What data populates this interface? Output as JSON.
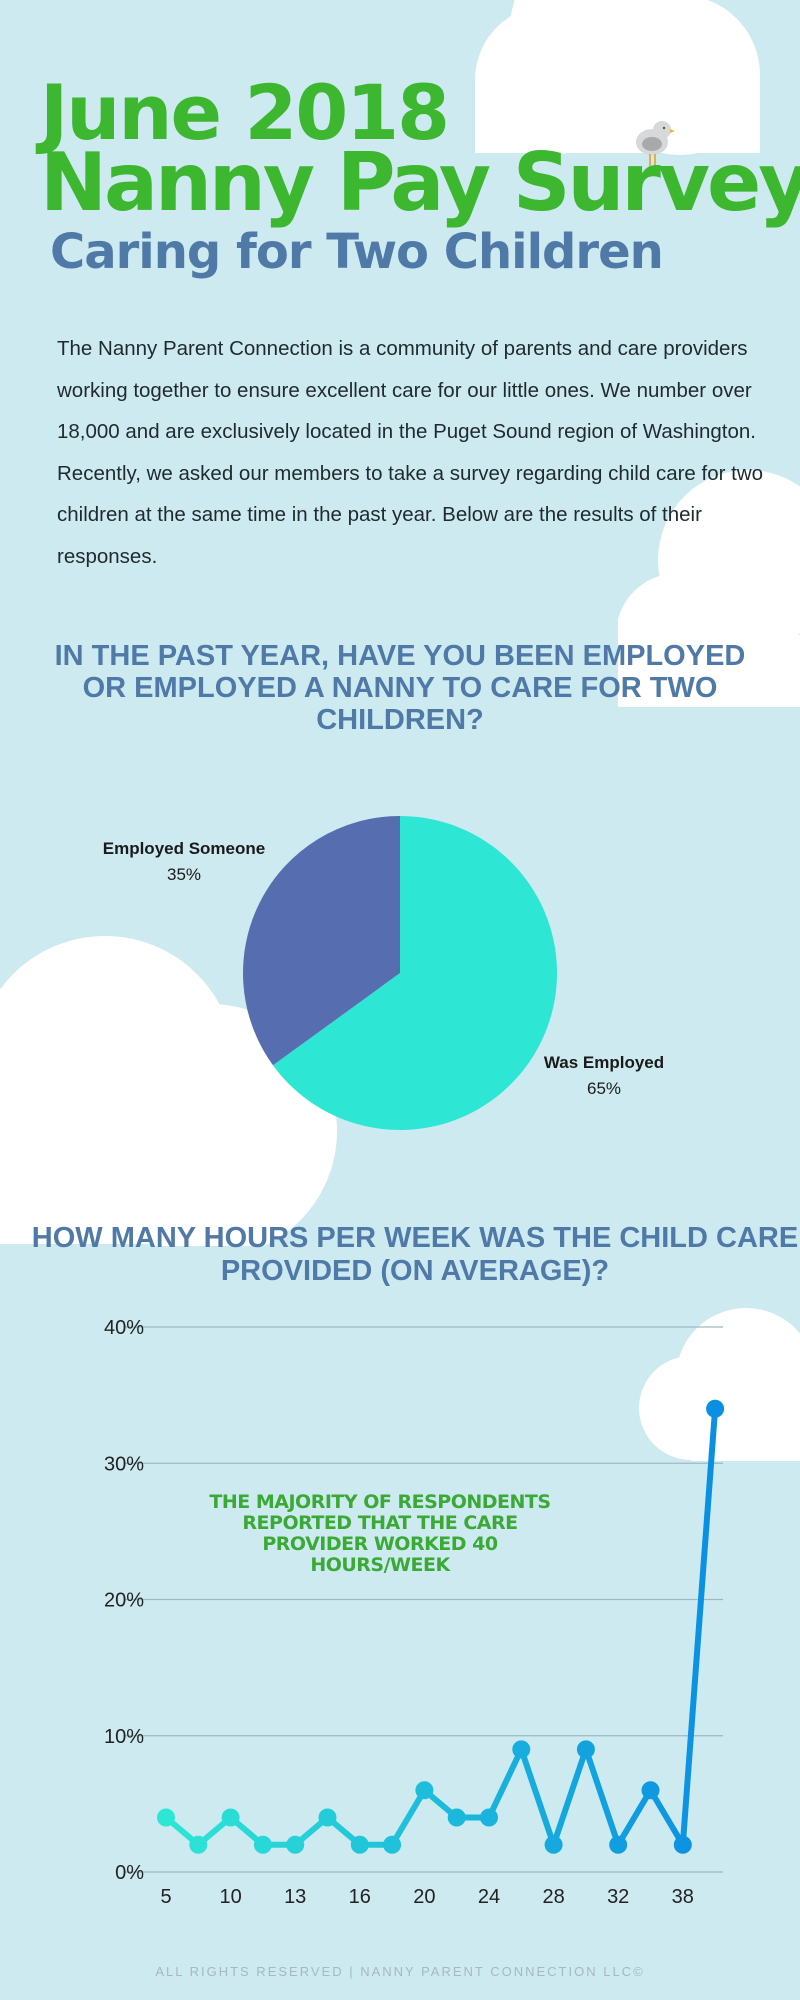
{
  "header": {
    "title_line1": "June 2018",
    "title_line2": "Nanny Pay Survey",
    "subtitle": "Caring for Two Children"
  },
  "intro": "The Nanny Parent Connection is a community of parents and care providers working together to ensure excellent care for our little ones. We number over 18,000 and are exclusively located in the Puget Sound region of Washington. Recently, we asked our members to take a survey regarding child care for two children at the same time in the past year. Below are the results of their responses.",
  "colors": {
    "background": "#cdeaf0",
    "title_green": "#3cb72f",
    "heading_blue": "#4f79a7",
    "annotation_green": "#3aa935"
  },
  "chart_data": [
    {
      "type": "pie",
      "title": "IN THE PAST YEAR, HAVE YOU BEEN EMPLOYED OR EMPLOYED A NANNY TO CARE FOR TWO CHILDREN?",
      "slices": [
        {
          "label": "Was Employed",
          "value": 65,
          "display": "65%",
          "color": "#2ee6d4"
        },
        {
          "label": "Employed Someone",
          "value": 35,
          "display": "35%",
          "color": "#566db0"
        }
      ]
    },
    {
      "type": "line",
      "title": "HOW MANY HOURS PER WEEK WAS THE CHILD CARE PROVIDED (ON AVERAGE)?",
      "categories": [
        "5",
        "",
        "10",
        "",
        "13",
        "",
        "16",
        "",
        "20",
        "",
        "24",
        "",
        "28",
        "",
        "32",
        "",
        "38",
        ""
      ],
      "values": [
        4,
        2,
        4,
        2,
        2,
        4,
        2,
        2,
        6,
        4,
        4,
        9,
        2,
        9,
        2,
        6,
        2,
        34
      ],
      "ylim": [
        0,
        40
      ],
      "yticks": [
        "0%",
        "10%",
        "20%",
        "30%",
        "40%"
      ],
      "ytick_values": [
        0,
        10,
        20,
        30,
        40
      ],
      "grid": true,
      "line_color_start": "#2ee6d4",
      "line_color_end": "#0a8fe3",
      "annotation": "THE MAJORITY OF RESPONDENTS REPORTED THAT THE CARE PROVIDER WORKED 40 HOURS/WEEK"
    }
  ],
  "footer": "ALL RIGHTS RESERVED | NANNY PARENT CONNECTION LLC©"
}
